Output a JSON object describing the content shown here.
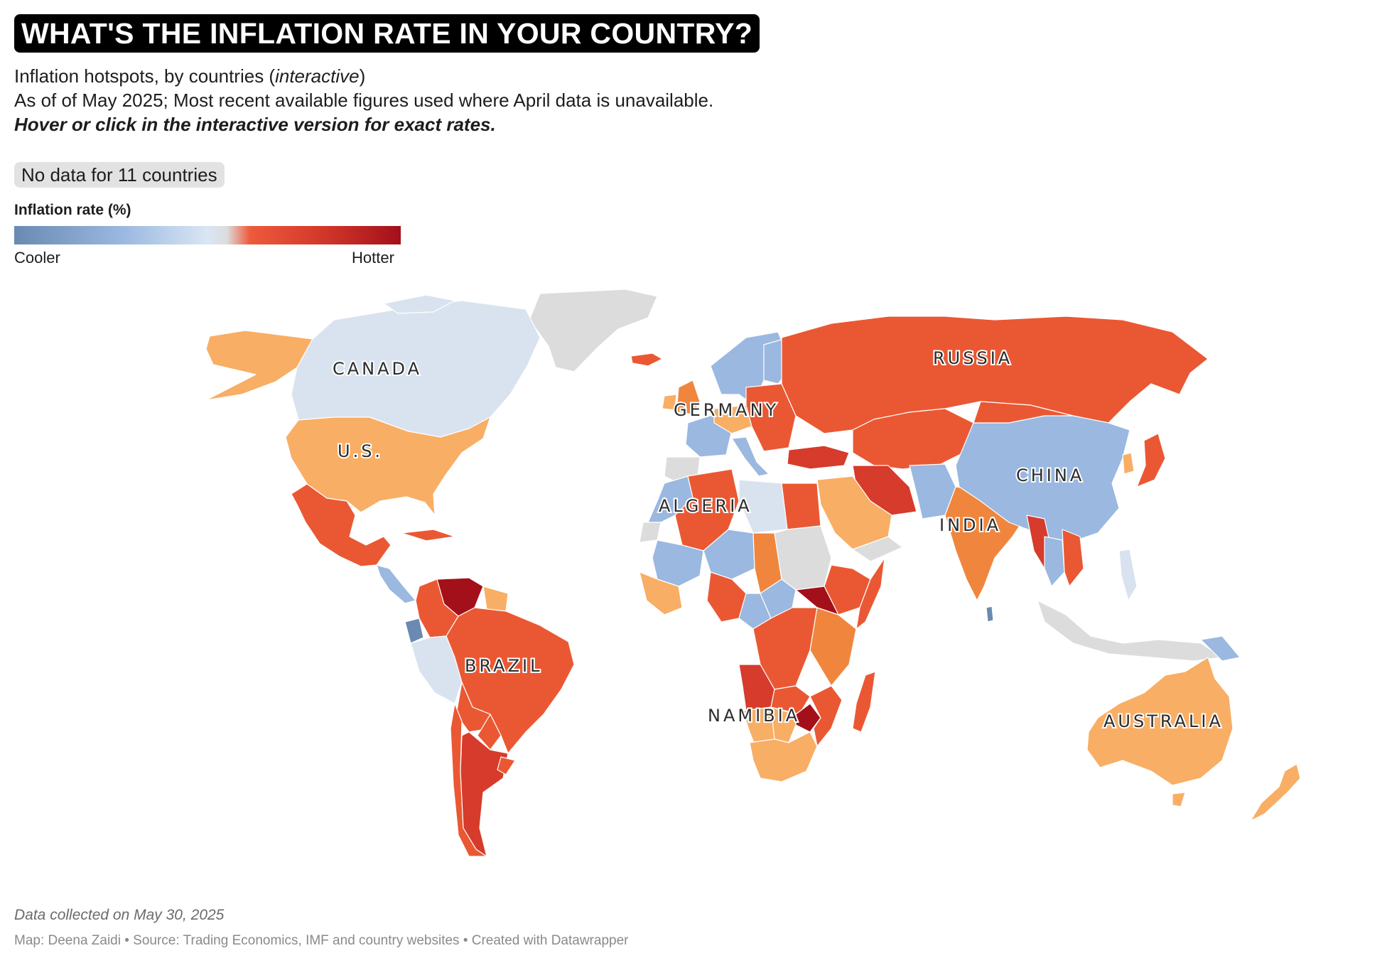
{
  "header": {
    "title": "WHAT'S THE INFLATION RATE IN YOUR COUNTRY?",
    "subtitle_prefix": "Inflation hotspots, by countries (",
    "subtitle_italic": "interactive",
    "subtitle_suffix": ")",
    "date_note": "As of of May 2025; Most recent available figures used where April data is unavailable.",
    "hint": "Hover or click in the interactive version for exact rates."
  },
  "no_data_badge": "No data for 11 countries",
  "legend": {
    "title": "Inflation rate (%)",
    "low_label": "Cooler",
    "high_label": "Hotter",
    "colors": [
      "#6a8ab1",
      "#9ab8e0",
      "#d9e6f4",
      "#dcdcdc",
      "#ee5a3c",
      "#d63b2b",
      "#a3101a"
    ]
  },
  "map": {
    "country_labels": [
      "CANADA",
      "U.S.",
      "GERMANY",
      "RUSSIA",
      "ALGERIA",
      "CHINA",
      "INDIA",
      "BRAZIL",
      "NAMIBIA",
      "AUSTRALIA"
    ],
    "palette": {
      "no_data": "#dcdcdc",
      "cool_light": "#d9e3ef",
      "cool_mid": "#9ab8e0",
      "cool_dark": "#6a8ab1",
      "warm_light": "#f8ae64",
      "warm_mid": "#f0863e",
      "hot": "#ea5833",
      "hotter": "#d63b2b",
      "hottest": "#a3101a"
    }
  },
  "footer": {
    "collected": "Data collected on May 30, 2025",
    "credits": "Map: Deena Zaidi • Source: Trading Economics, IMF and country websites • Created with Datawrapper"
  }
}
